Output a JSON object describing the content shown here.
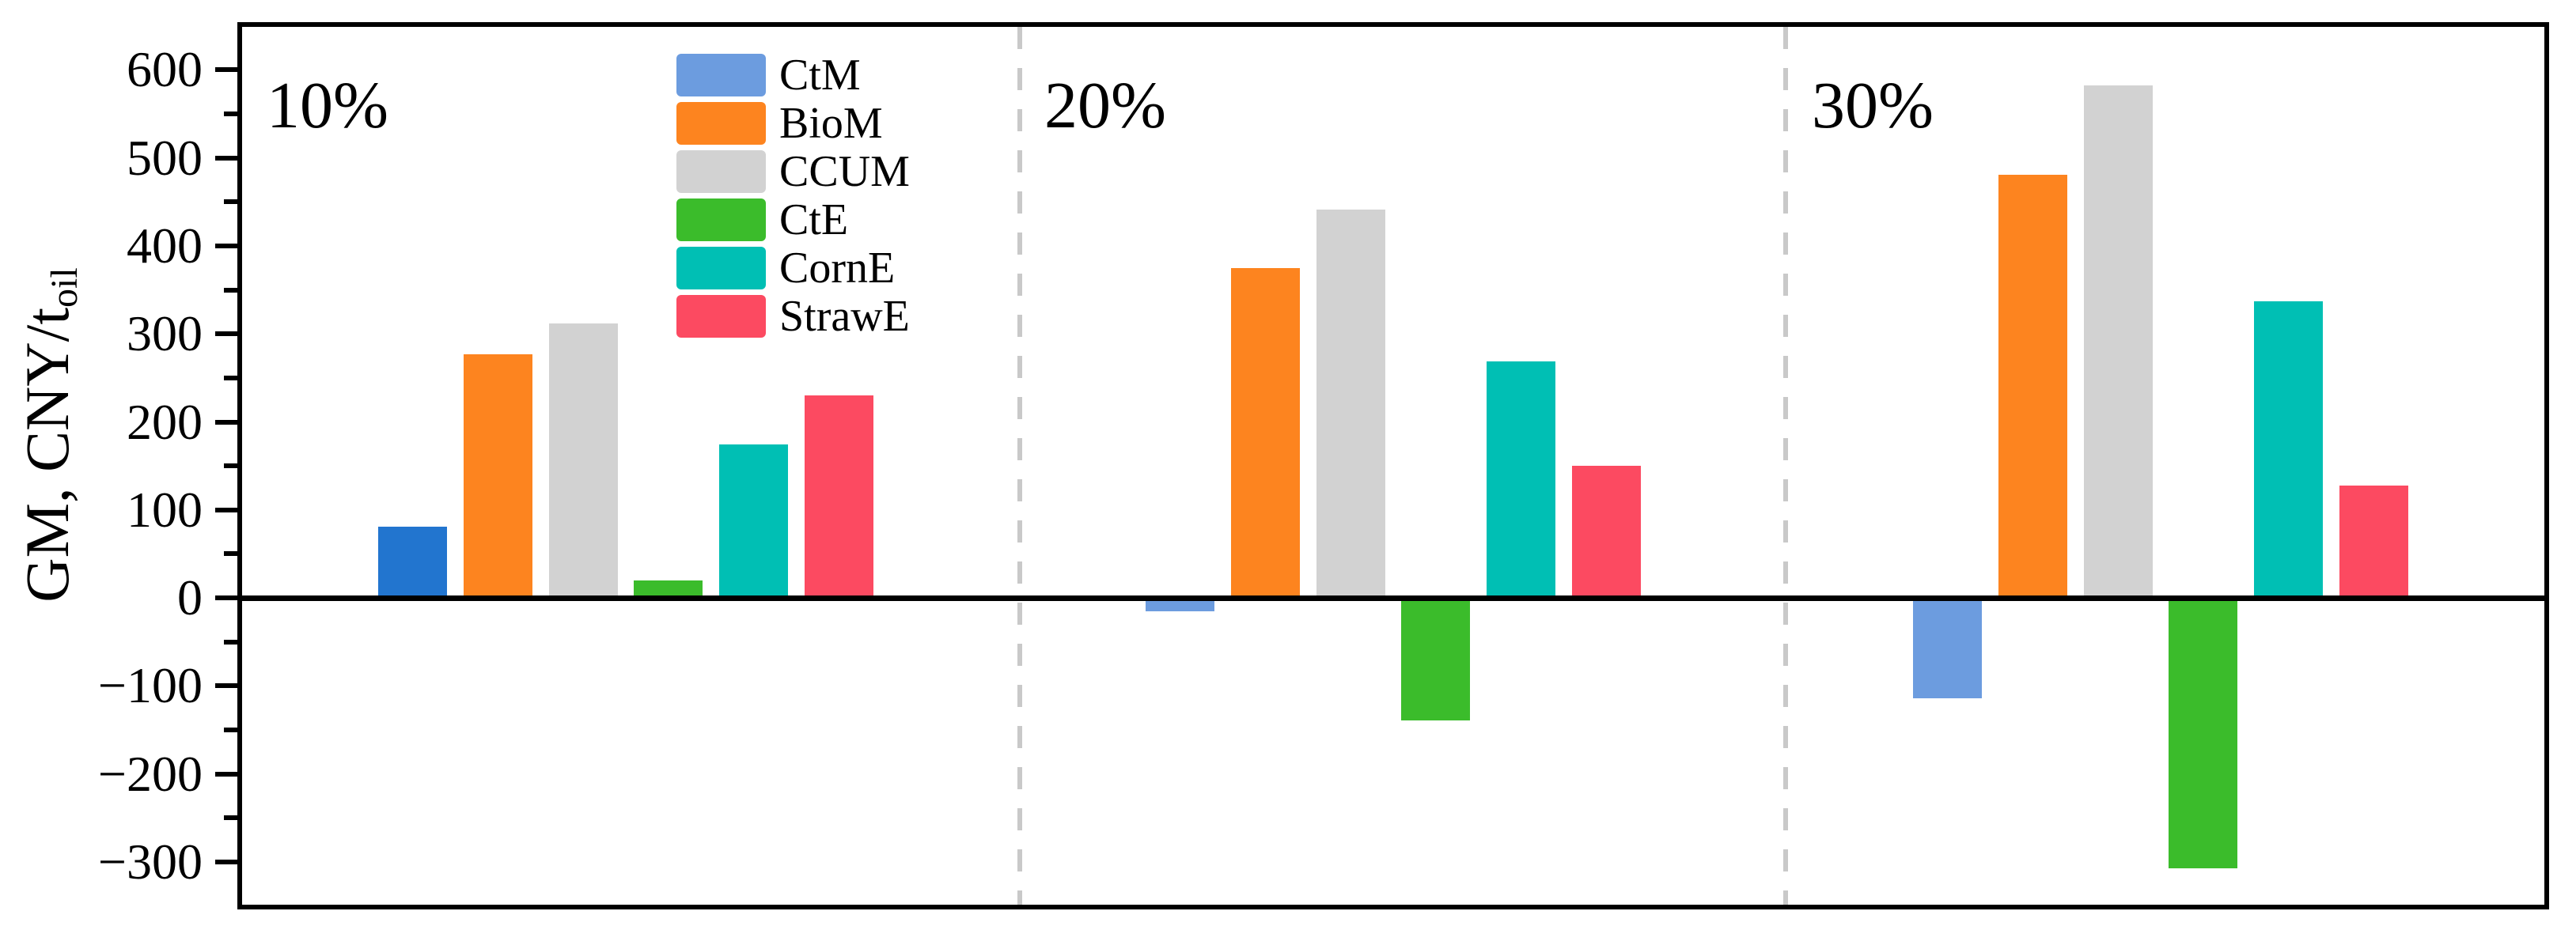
{
  "axis": {
    "ylabel_main": "GM, CNY/t",
    "ylabel_sub": "oil",
    "major_ticks": [
      600,
      500,
      400,
      300,
      200,
      100,
      0,
      -100,
      -200,
      -300
    ],
    "minor_ticks": [
      550,
      450,
      350,
      250,
      150,
      50,
      -50,
      -150,
      -250
    ]
  },
  "chart_data": {
    "type": "bar",
    "title": "",
    "xlabel": "",
    "ylabel": "GM, CNY/t_oil",
    "ylim": [
      -352,
      650
    ],
    "grid": false,
    "legend_position": "upper left inside plot",
    "panel_separator_style": "dashed gray vertical lines",
    "groups": [
      "10%",
      "20%",
      "30%"
    ],
    "series": [
      {
        "name": "CtM",
        "color": "#6C9CDF",
        "bar_colors": [
          "#2275CF",
          "#6C9CDF",
          "#6C9CDF"
        ],
        "values": [
          81,
          -15,
          -114
        ]
      },
      {
        "name": "BioM",
        "color": "#FD841F",
        "bar_colors": [
          "#FD841F",
          "#FD841F",
          "#FD841F"
        ],
        "values": [
          277,
          375,
          481
        ]
      },
      {
        "name": "CCUM",
        "color": "#D2D2D2",
        "bar_colors": [
          "#D2D2D2",
          "#D2D2D2",
          "#D2D2D2"
        ],
        "values": [
          312,
          441,
          582
        ]
      },
      {
        "name": "CtE",
        "color": "#3BBC2B",
        "bar_colors": [
          "#3BBC2B",
          "#3BBC2B",
          "#3BBC2B"
        ],
        "values": [
          20,
          -139,
          -307
        ]
      },
      {
        "name": "CornE",
        "color": "#00BFB4",
        "bar_colors": [
          "#00BFB4",
          "#00BFB4",
          "#00BFB4"
        ],
        "values": [
          174,
          269,
          337
        ]
      },
      {
        "name": "StrawE",
        "color": "#FC4A61",
        "bar_colors": [
          "#FC4A61",
          "#FC4A61",
          "#FC4A61"
        ],
        "values": [
          230,
          150,
          128
        ]
      }
    ]
  }
}
